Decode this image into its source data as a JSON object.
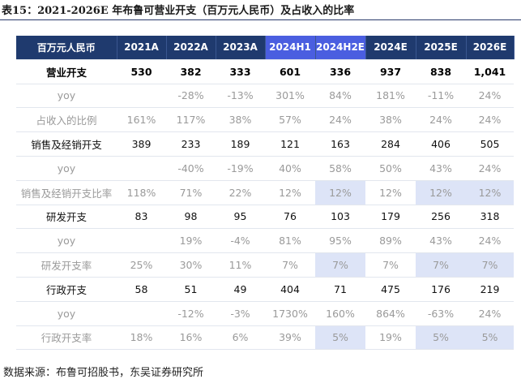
{
  "title": "表15：2021-2026E 年布鲁可营业开支（百万元人民币）及占收入的比率",
  "source": "数据来源：布鲁可招股书，东吴证券研究所",
  "table": {
    "headers": [
      "百万元人民币",
      "2021A",
      "2022A",
      "2023A",
      "2024H1",
      "2024H2E",
      "2024E",
      "2025E",
      "2026E"
    ],
    "rows": [
      [
        "营业开支",
        "530",
        "382",
        "333",
        "601",
        "336",
        "937",
        "838",
        "1,041"
      ],
      [
        "yoy",
        "",
        "-28%",
        "-13%",
        "301%",
        "84%",
        "181%",
        "-11%",
        "24%"
      ],
      [
        "占收入的比例",
        "161%",
        "117%",
        "38%",
        "57%",
        "24%",
        "38%",
        "24%",
        "24%"
      ],
      [
        "销售及经销开支",
        "389",
        "233",
        "189",
        "121",
        "163",
        "284",
        "406",
        "505"
      ],
      [
        "yoy",
        "",
        "-40%",
        "-19%",
        "40%",
        "58%",
        "50%",
        "43%",
        "24%"
      ],
      [
        "销售及经销开支比率",
        "118%",
        "71%",
        "22%",
        "12%",
        "12%",
        "12%",
        "12%",
        "12%"
      ],
      [
        "研发开支",
        "83",
        "98",
        "95",
        "76",
        "103",
        "179",
        "256",
        "318"
      ],
      [
        "yoy",
        "",
        "19%",
        "-4%",
        "81%",
        "95%",
        "89%",
        "43%",
        "24%"
      ],
      [
        "研发开支率",
        "25%",
        "30%",
        "11%",
        "7%",
        "7%",
        "7%",
        "7%",
        "7%"
      ],
      [
        "行政开支",
        "58",
        "51",
        "49",
        "404",
        "71",
        "475",
        "176",
        "219"
      ],
      [
        "yoy",
        "",
        "-12%",
        "-3%",
        "1730%",
        "160%",
        "864%",
        "-63%",
        "24%"
      ],
      [
        "行政开支率",
        "18%",
        "16%",
        "6%",
        "39%",
        "5%",
        "19%",
        "5%",
        "5%"
      ]
    ]
  },
  "colors": {
    "header": "#1f3a6e",
    "header_highlight": "#4a5ee0",
    "shade": "#dde4f7"
  }
}
